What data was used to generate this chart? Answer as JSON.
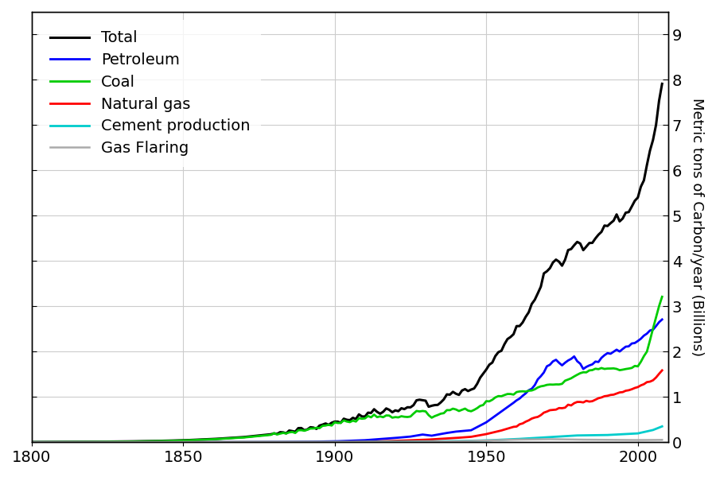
{
  "ylabel": "Metric tons of Carbon/year (Billions)",
  "xlim": [
    1800,
    2010
  ],
  "ylim": [
    0,
    9.5
  ],
  "yticks": [
    0,
    1,
    2,
    3,
    4,
    5,
    6,
    7,
    8,
    9
  ],
  "xticks": [
    1800,
    1850,
    1900,
    1950,
    2000
  ],
  "series": {
    "Total": {
      "color": "#000000",
      "lw": 2.2
    },
    "Petroleum": {
      "color": "#0000ff",
      "lw": 2.0
    },
    "Coal": {
      "color": "#00cc00",
      "lw": 2.0
    },
    "Natural gas": {
      "color": "#ff0000",
      "lw": 2.0
    },
    "Cement production": {
      "color": "#00cccc",
      "lw": 2.0
    },
    "Gas Flaring": {
      "color": "#aaaaaa",
      "lw": 1.8
    }
  },
  "legend_fontsize": 14,
  "tick_fontsize": 14,
  "ylabel_fontsize": 13,
  "grid_color": "#cccccc"
}
